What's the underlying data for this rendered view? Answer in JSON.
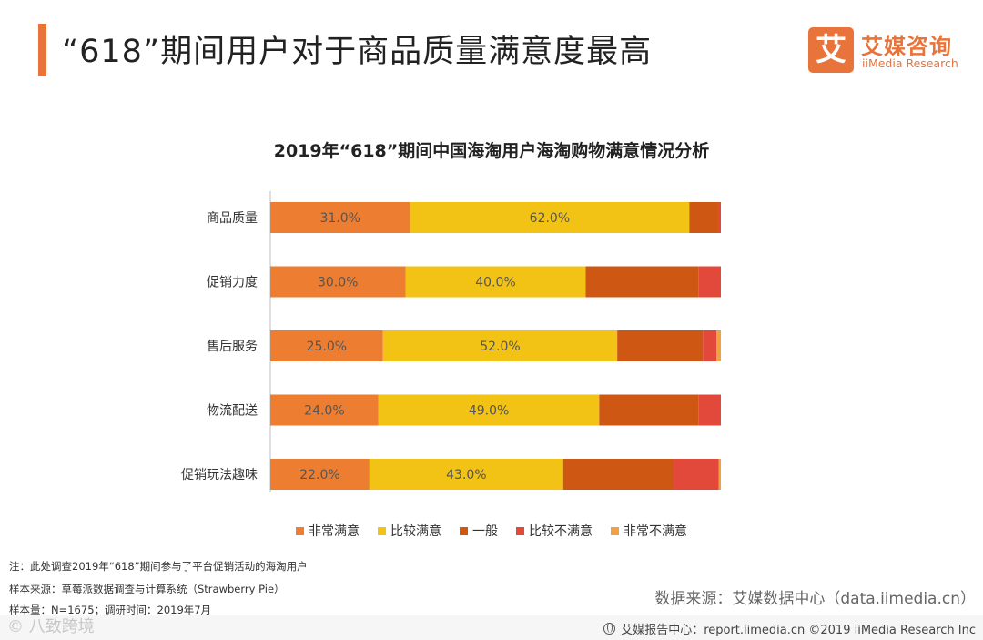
{
  "header": {
    "title": "“618”期间用户对于商品质量满意度最高",
    "accent": "#e8743b"
  },
  "logo": {
    "mark": "艾",
    "cn": "艾媒咨询",
    "en": "iiMedia Research"
  },
  "chart_data": {
    "type": "bar",
    "orientation": "horizontal-stacked-100",
    "title": "2019年“618”期间中国海淘用户海淘购物满意情况分析",
    "categories": [
      "商品质量",
      "促销力度",
      "售后服务",
      "物流配送",
      "促销玩法趣味"
    ],
    "series": [
      {
        "name": "非常满意",
        "color": "#ed7d31",
        "values": [
          31.0,
          30.0,
          25.0,
          24.0,
          22.0
        ]
      },
      {
        "name": "比较满意",
        "color": "#f2c314",
        "values": [
          62.0,
          40.0,
          52.0,
          49.0,
          43.0
        ]
      },
      {
        "name": "一般",
        "color": "#cf5714",
        "values": [
          6.5,
          25.0,
          19.0,
          22.0,
          24.5
        ]
      },
      {
        "name": "比较不满意",
        "color": "#e2493a",
        "values": [
          0.5,
          5.0,
          3.0,
          5.0,
          10.0
        ]
      },
      {
        "name": "非常不满意",
        "color": "#f0a144",
        "values": [
          0.0,
          0.0,
          1.0,
          0.0,
          0.5
        ]
      }
    ],
    "labels": [
      "31.0%",
      "62.0%",
      "30.0%",
      "40.0%",
      "25.0%",
      "52.0%",
      "24.0%",
      "49.0%",
      "22.0%",
      "43.0%"
    ],
    "labeled_series_count": 2,
    "xlim": [
      0,
      100
    ],
    "legend_position": "bottom"
  },
  "notes": {
    "line1": "注：此处调查2019年“618”期间参与了平台促销活动的海淘用户",
    "line2": "样本来源：草莓派数据调查与计算系统（Strawberry  Pie）",
    "line3": "样本量：N=1675；调研时间：2019年7月"
  },
  "source": "数据来源：艾媒数据中心（data.iimedia.cn）",
  "footer": {
    "text": "艾媒报告中心：report.iimedia.cn  ©2019  iiMedia Research  Inc",
    "watermark": "© 八致跨境"
  }
}
